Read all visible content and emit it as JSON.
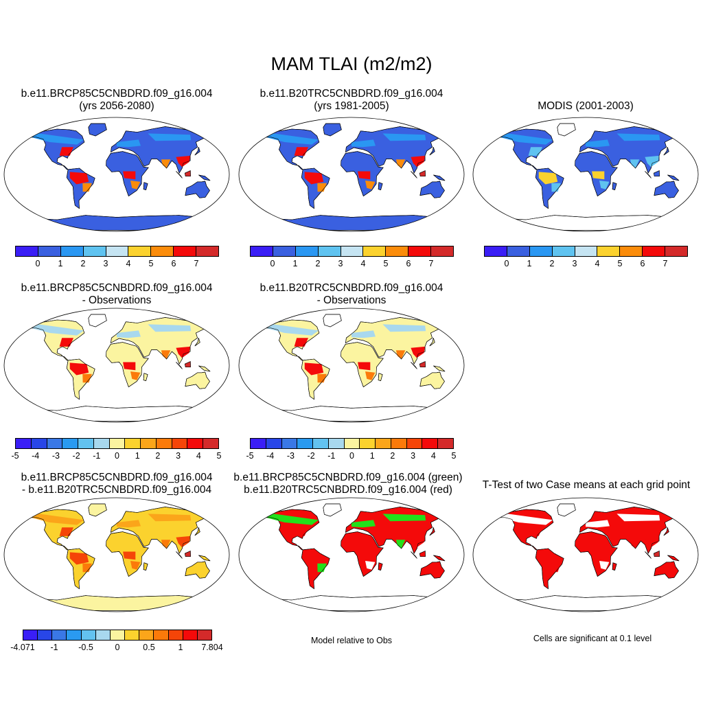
{
  "title": "MAM TLAI (m2/m2)",
  "panels": [
    {
      "id": "p1",
      "line1": "b.e11.BRCP85C5CNBDRD.f09_g16.004",
      "line2": "(yrs 2056-2080)",
      "fill": "lai"
    },
    {
      "id": "p2",
      "line1": "b.e11.B20TRC5CNBDRD.f09_g16.004",
      "line2": "(yrs 1981-2005)",
      "fill": "lai"
    },
    {
      "id": "p3",
      "line1": "",
      "line2": "MODIS (2001-2003)",
      "fill": "modis"
    },
    {
      "id": "p4",
      "line1": "b.e11.BRCP85C5CNBDRD.f09_g16.004",
      "line2": "- Observations",
      "fill": "diff"
    },
    {
      "id": "p5",
      "line1": "b.e11.B20TRC5CNBDRD.f09_g16.004",
      "line2": "- Observations",
      "fill": "diff"
    },
    {
      "id": "p6",
      "line1": "b.e11.BRCP85C5CNBDRD.f09_g16.004",
      "line2": "- b.e11.B20TRC5CNBDRD.f09_g16.004",
      "fill": "casediff"
    },
    {
      "id": "p7",
      "line1": "b.e11.BRCP85C5CNBDRD.f09_g16.004 (green)",
      "line2": "b.e11.B20TRC5CNBDRD.f09_g16.004 (red)",
      "fill": "greenred"
    },
    {
      "id": "p8",
      "line1": "",
      "line2": "T-Test of two Case means at each grid point",
      "fill": "ttest"
    }
  ],
  "colorbars": {
    "lai": {
      "colors": [
        "#3a1ef6",
        "#3a60e0",
        "#2a97f2",
        "#5fc3f0",
        "#c5e4f2",
        "#fbd22e",
        "#fb8c0a",
        "#f40a0a",
        "#d42a2a"
      ],
      "labels": [
        "0",
        "1",
        "2",
        "3",
        "4",
        "5",
        "6",
        "7"
      ]
    },
    "diff": {
      "colors": [
        "#3a1ef6",
        "#2846e8",
        "#3a78e6",
        "#2a9af0",
        "#63c2f0",
        "#a8d8ee",
        "#fbf4a0",
        "#fbd22e",
        "#fba51a",
        "#fb7a0a",
        "#f54508",
        "#f40a0a",
        "#d42a2a"
      ],
      "labels": [
        "-5",
        "-4",
        "-3",
        "-2",
        "-1",
        "0",
        "1",
        "2",
        "3",
        "4",
        "5"
      ]
    },
    "casediff": {
      "colors": [
        "#3a1ef6",
        "#2846e8",
        "#3a78e6",
        "#2a9af0",
        "#63c2f0",
        "#a8d8ee",
        "#fbf4a0",
        "#fbd22e",
        "#fba51a",
        "#fb7a0a",
        "#f54508",
        "#f40a0a",
        "#d42a2a"
      ],
      "labels": [
        "-4.071",
        "-1",
        "-0.5",
        "0",
        "0.5",
        "1",
        "7.804"
      ]
    }
  },
  "notes": {
    "model_relative": "Model relative to Obs",
    "significance": "Cells are significant at 0.1 level"
  },
  "fill_colors": {
    "lai": {
      "base": "#3a60e0",
      "mid": "#2a97f2",
      "hot": "#f40a0a",
      "warm": "#fb8c0a",
      "dark": "#d42a2a",
      "ice": "#3a60e0"
    },
    "modis": {
      "base": "#3a60e0",
      "mid": "#2a97f2",
      "hot": "#fbd22e",
      "warm": "#5fc3f0",
      "dark": "#3a60e0",
      "ice": "#ffffff"
    },
    "diff": {
      "base": "#fbf4a0",
      "mid": "#a8d8ee",
      "hot": "#f40a0a",
      "warm": "#fb7a0a",
      "dark": "#d42a2a",
      "ice": "#ffffff"
    },
    "casediff": {
      "base": "#fbd22e",
      "mid": "#fba51a",
      "hot": "#f54508",
      "warm": "#fb7a0a",
      "dark": "#d42a2a",
      "ice": "#fbf4a0"
    },
    "greenred": {
      "base": "#f40a0a",
      "mid": "#ffffff",
      "hot": "#f40a0a",
      "warm": "#22e01a",
      "dark": "#f40a0a",
      "ice": "#ffffff"
    },
    "ttest": {
      "base": "#f40a0a",
      "mid": "#ffffff",
      "hot": "#f40a0a",
      "warm": "#f40a0a",
      "dark": "#d42a2a",
      "ice": "#ffffff"
    }
  }
}
